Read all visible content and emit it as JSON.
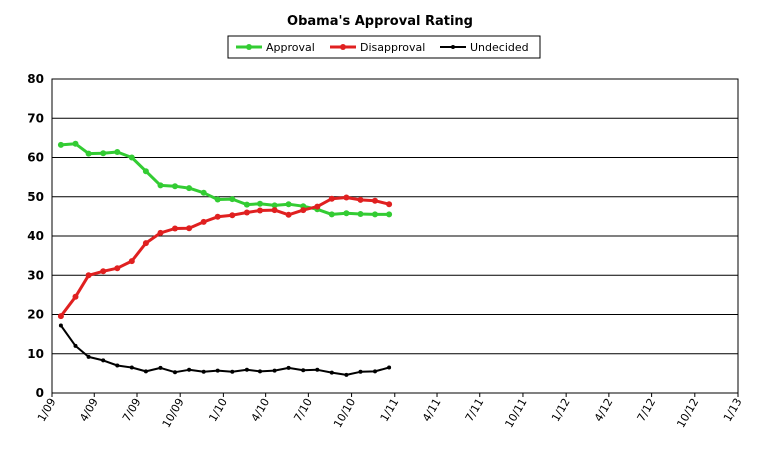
{
  "chart_data": {
    "type": "line",
    "title": "Obama's Approval Rating",
    "xlabel": "",
    "ylabel": "",
    "ylim": [
      0,
      80
    ],
    "yticks": [
      "0",
      "10",
      "20",
      "30",
      "40",
      "50",
      "60",
      "70",
      "80"
    ],
    "xticks": [
      "1/09",
      "4/09",
      "7/09",
      "10/09",
      "1/10",
      "4/10",
      "7/10",
      "10/10",
      "1/11",
      "4/11",
      "7/11",
      "10/11",
      "1/12",
      "4/12",
      "7/12",
      "10/12",
      "1/13"
    ],
    "grid": "horizontal",
    "legend_position": "top",
    "x": [
      "2009-01-20",
      "2009-02-20",
      "2009-03-20",
      "2009-04-20",
      "2009-05-20",
      "2009-06-20",
      "2009-07-20",
      "2009-08-20",
      "2009-09-20",
      "2009-10-20",
      "2009-11-20",
      "2009-12-20",
      "2010-01-20",
      "2010-02-20",
      "2010-03-20",
      "2010-04-20",
      "2010-05-20",
      "2010-06-20",
      "2010-07-20",
      "2010-08-20",
      "2010-09-20",
      "2010-10-20",
      "2010-11-20",
      "2010-12-20"
    ],
    "series": [
      {
        "name": "Approval",
        "color": "#33cc33",
        "values": [
          63.2,
          63.5,
          61.0,
          61.1,
          61.4,
          60.0,
          56.5,
          52.9,
          52.7,
          52.2,
          51.0,
          49.3,
          49.4,
          48.0,
          48.2,
          47.8,
          48.1,
          47.6,
          46.8,
          45.5,
          45.8,
          45.6,
          45.5,
          45.5
        ]
      },
      {
        "name": "Disapproval",
        "color": "#e02020",
        "values": [
          19.6,
          24.5,
          30.0,
          31.0,
          31.8,
          33.6,
          38.2,
          40.8,
          41.9,
          42.0,
          43.6,
          44.9,
          45.3,
          46.0,
          46.5,
          46.6,
          45.4,
          46.6,
          47.5,
          49.5,
          49.8,
          49.2,
          49.0,
          48.1
        ]
      },
      {
        "name": "Undecided",
        "color": "#000000",
        "values": [
          17.2,
          12.0,
          9.2,
          8.3,
          7.0,
          6.5,
          5.5,
          6.4,
          5.3,
          5.9,
          5.4,
          5.7,
          5.4,
          5.9,
          5.5,
          5.7,
          6.4,
          5.8,
          5.9,
          5.2,
          4.6,
          5.4,
          5.5,
          6.5
        ]
      }
    ]
  }
}
